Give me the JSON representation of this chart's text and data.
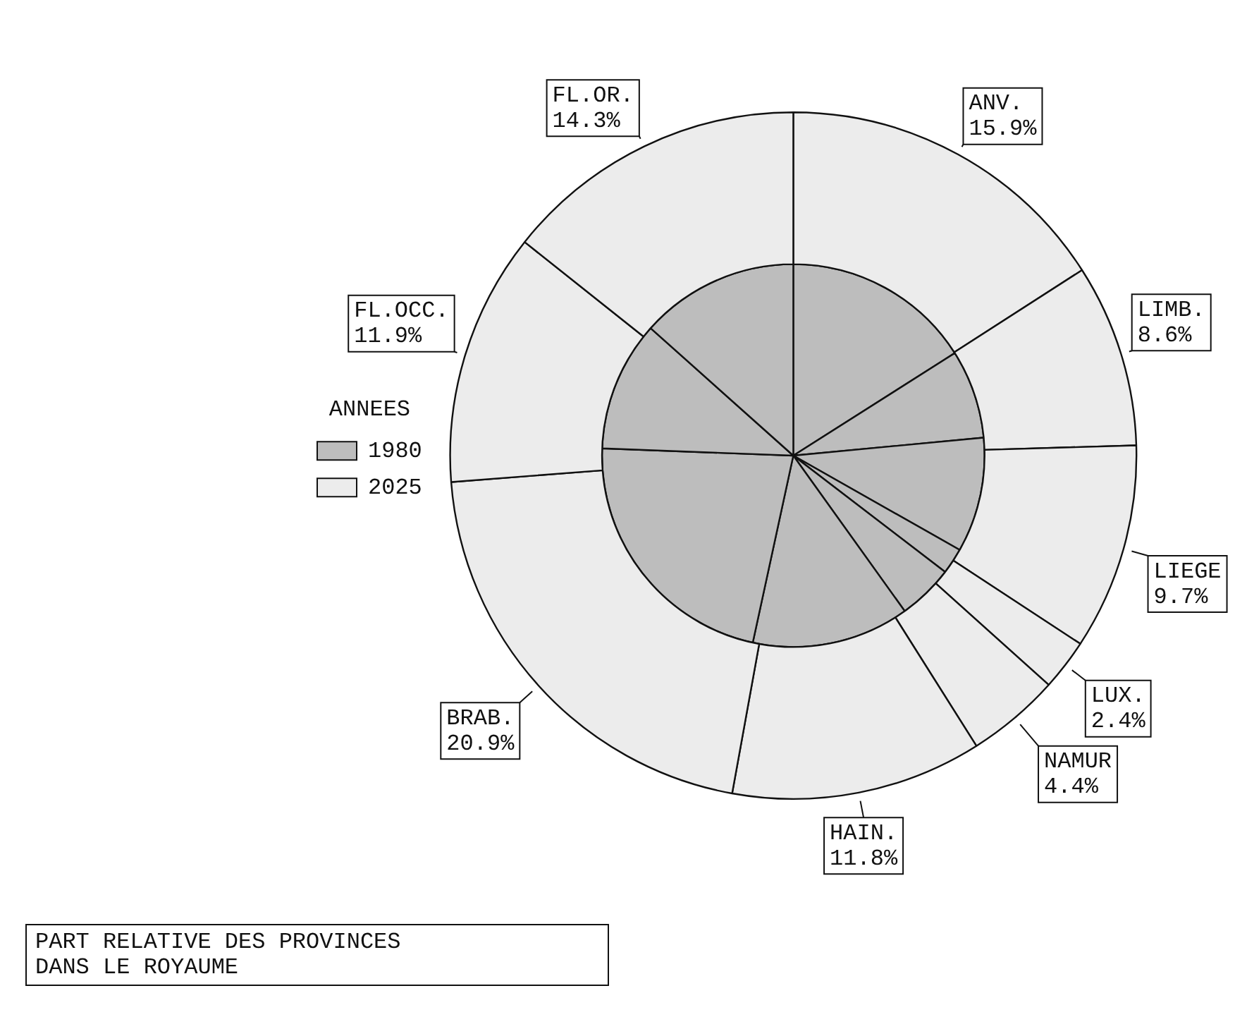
{
  "chart_data": {
    "type": "pie",
    "title": "PART RELATIVE DES PROVINCES\nDANS LE ROYAUME",
    "legend_title": "ANNEES",
    "legend": "left",
    "categories": [
      "ANV.",
      "LIMB.",
      "LIEGE",
      "LUX.",
      "NAMUR",
      "HAIN.",
      "BRAB.",
      "FL.OCC.",
      "FL.OR."
    ],
    "series": [
      {
        "name": "2025",
        "color": "#ececec",
        "values": [
          15.9,
          8.6,
          9.7,
          2.4,
          4.4,
          11.8,
          20.9,
          11.9,
          14.3
        ],
        "value_labels": [
          "15.9%",
          "8.6%",
          "9.7%",
          "2.4%",
          "4.4%",
          "11.8%",
          "20.9%",
          "11.9%",
          "14.3%"
        ]
      },
      {
        "name": "1980",
        "color": "#bdbdbd",
        "values": [
          16.0,
          7.5,
          9.7,
          2.2,
          4.7,
          13.3,
          22.2,
          11.0,
          13.4
        ]
      }
    ]
  }
}
